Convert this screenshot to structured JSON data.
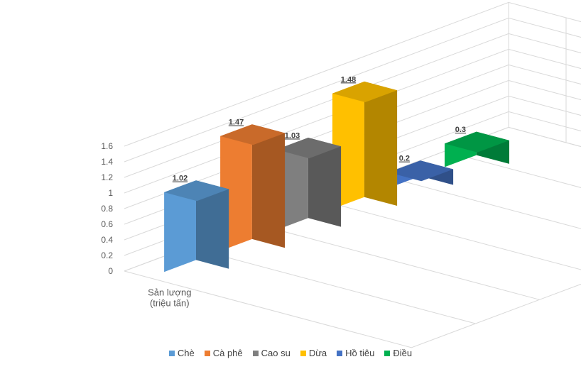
{
  "chart_data": {
    "type": "bar",
    "variant": "3d-column",
    "categories": [
      "Sản lượng (triệu tấn)"
    ],
    "category_label_lines": [
      "Sản lượng",
      "(triệu tấn)"
    ],
    "series": [
      {
        "name": "Chè",
        "values": [
          1.02
        ],
        "label": "1.02",
        "color": "#5B9BD5"
      },
      {
        "name": "Cà phê",
        "values": [
          1.47
        ],
        "label": "1.47",
        "color": "#ED7D31"
      },
      {
        "name": "Cao su",
        "values": [
          1.03
        ],
        "label": "1.03",
        "color": "#7F7F7F"
      },
      {
        "name": "Dừa",
        "values": [
          1.48
        ],
        "label": "1.48",
        "color": "#FFC000"
      },
      {
        "name": "Hồ tiêu",
        "values": [
          0.2
        ],
        "label": "0.2",
        "color": "#4472C4"
      },
      {
        "name": "Điều",
        "values": [
          0.3
        ],
        "label": "0.3",
        "color": "#00B050"
      }
    ],
    "yticks": [
      "0",
      "0.2",
      "0.4",
      "0.6",
      "0.8",
      "1",
      "1.2",
      "1.4",
      "1.6"
    ],
    "ylim": [
      0,
      1.6
    ],
    "title": "",
    "xlabel": "",
    "ylabel": "",
    "grid": true,
    "legend_position": "bottom"
  }
}
